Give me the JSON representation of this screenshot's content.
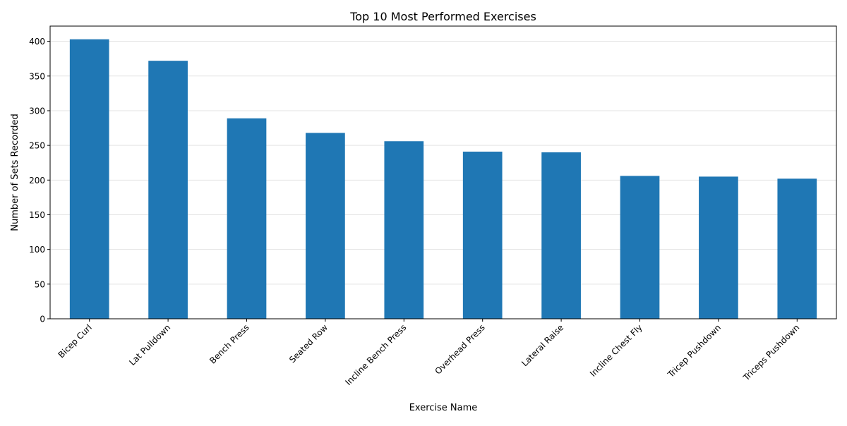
{
  "chart_data": {
    "type": "bar",
    "title": "Top 10 Most Performed Exercises",
    "xlabel": "Exercise Name",
    "ylabel": "Number of Sets Recorded",
    "categories": [
      "Bicep Curl",
      "Lat Pulldown",
      "Bench Press",
      "Seated Row",
      "Incline Bench Press",
      "Overhead Press",
      "Lateral Raise",
      "Incline Chest Fly",
      "Tricep Pushdown",
      "Triceps Pushdown"
    ],
    "values": [
      403,
      372,
      289,
      268,
      256,
      241,
      240,
      206,
      205,
      202
    ],
    "ylim": [
      0,
      422
    ],
    "yticks": [
      0,
      50,
      100,
      150,
      200,
      250,
      300,
      350,
      400
    ],
    "grid": "horizontal",
    "bar_color": "#1f77b4",
    "legend": "none"
  }
}
